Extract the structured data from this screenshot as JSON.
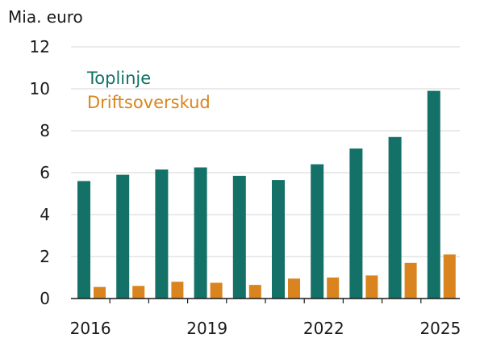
{
  "chart_data": {
    "type": "bar",
    "unit_label": "Mia. euro",
    "categories": [
      "2016",
      "2017",
      "2018",
      "2019",
      "2020",
      "2021",
      "2022",
      "2023",
      "2024",
      "2025"
    ],
    "x_tick_labels": [
      "2016",
      "",
      "",
      "2019",
      "",
      "",
      "2022",
      "",
      "",
      "2025"
    ],
    "y_ticks": [
      0,
      2,
      4,
      6,
      8,
      10,
      12
    ],
    "ylim": [
      0,
      12
    ],
    "grid": true,
    "legend_position": "top-left",
    "series": [
      {
        "name": "Toplinje",
        "color": "#137168",
        "values": [
          5.6,
          5.9,
          6.15,
          6.25,
          5.85,
          5.65,
          6.4,
          7.15,
          7.7,
          9.9
        ]
      },
      {
        "name": "Driftsoverskud",
        "color": "#d9841e",
        "values": [
          0.55,
          0.6,
          0.8,
          0.75,
          0.65,
          0.95,
          1.0,
          1.1,
          1.7,
          2.1
        ]
      }
    ]
  }
}
